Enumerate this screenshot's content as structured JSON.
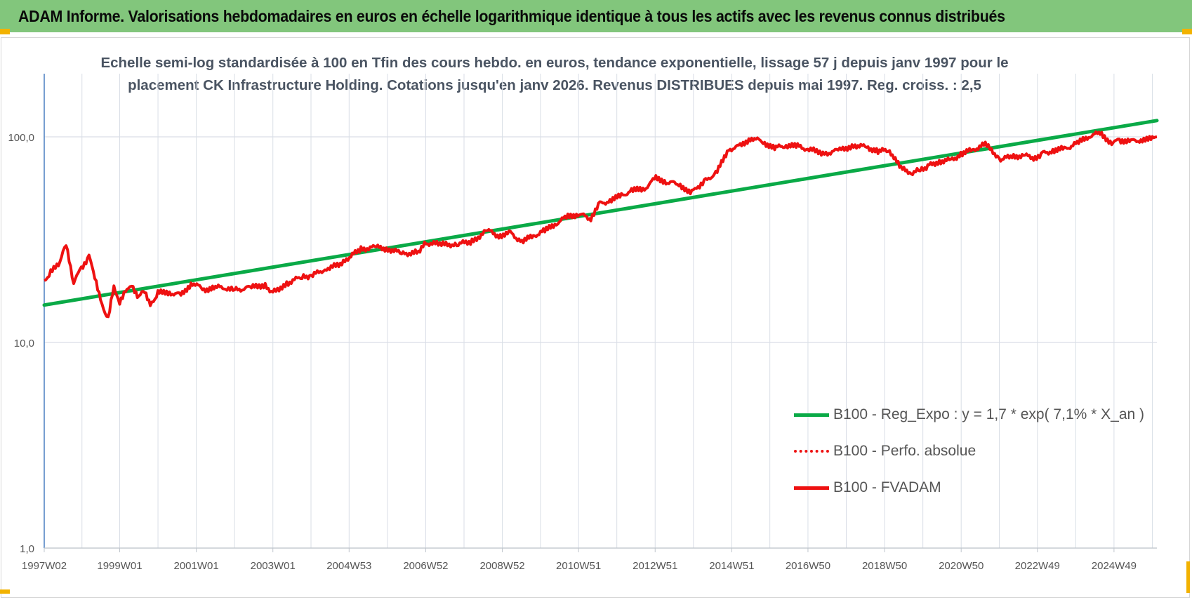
{
  "header": {
    "title": "ADAM Informe. Valorisations hebdomadaires en euros en échelle logarithmique identique à tous les actifs avec les revenus connus distribués"
  },
  "colors": {
    "banner": "#82c67c",
    "regression": "#0aaa47",
    "fvadam": "#ee1111",
    "axis": "#4a7fc0",
    "grid": "#d9dee6",
    "corner": "#f2b200"
  },
  "chart_data": {
    "type": "line",
    "title_lines": [
      "Echelle semi-log standardisée à 100 en Tfin des cours hebdo. en euros, tendance exponentielle, lissage 57 j depuis janv 1997 pour le",
      "placement CK Infrastructure Holding. Cotations jusqu'en janv 2026. Revenus DISTRIBUES depuis mai 1997. Reg. croiss. : 2,5"
    ],
    "y_scale": "log",
    "ylim": [
      1,
      200
    ],
    "y_ticks": [
      "1,0",
      "10,0",
      "100,0"
    ],
    "y_tick_values": [
      1,
      10,
      100
    ],
    "x_range": [
      1997.03,
      2026.08
    ],
    "x_ticks": [
      "1997W02",
      "1999W01",
      "2001W01",
      "2003W01",
      "2004W53",
      "2006W52",
      "2008W52",
      "2010W51",
      "2012W51",
      "2014W51",
      "2016W50",
      "2018W50",
      "2020W50",
      "2022W49",
      "2024W49"
    ],
    "x_tick_years": [
      1997.03,
      1999.0,
      2001.0,
      2003.0,
      2004.99,
      2006.99,
      2008.99,
      2010.98,
      2012.98,
      2014.98,
      2016.97,
      2018.97,
      2020.97,
      2022.96,
      2024.96
    ],
    "legend_position": "bottom-right",
    "grid": true,
    "series": [
      {
        "name": "B100 - Reg_Expo : y = 1,7 * exp( 7,1% *  X_an )",
        "style": "solid-green",
        "x": [
          1997.03,
          2026.08
        ],
        "values": [
          15.2,
          120
        ]
      },
      {
        "name": "B100 - Perfo. absolue",
        "style": "dotted-red",
        "x": [],
        "values": []
      },
      {
        "name": "B100 - FVADAM",
        "style": "solid-red",
        "x": [
          1997.03,
          1997.2,
          1997.4,
          1997.6,
          1997.8,
          1998.0,
          1998.2,
          1998.35,
          1998.5,
          1998.7,
          1998.85,
          1999.0,
          1999.15,
          1999.35,
          1999.5,
          1999.65,
          1999.8,
          2000.0,
          2000.3,
          2000.6,
          2000.9,
          2001.2,
          2001.5,
          2001.8,
          2002.0,
          2002.4,
          2002.8,
          2003.0,
          2003.4,
          2003.8,
          2004.0,
          2004.4,
          2004.8,
          2005.0,
          2005.3,
          2005.7,
          2006.0,
          2006.4,
          2006.8,
          2007.0,
          2007.4,
          2007.8,
          2008.2,
          2008.6,
          2008.9,
          2009.2,
          2009.5,
          2009.8,
          2010.1,
          2010.4,
          2010.7,
          2011.0,
          2011.3,
          2011.5,
          2011.8,
          2012.1,
          2012.4,
          2012.7,
          2013.0,
          2013.3,
          2013.6,
          2013.9,
          2014.1,
          2014.3,
          2014.6,
          2014.9,
          2015.2,
          2015.5,
          2015.8,
          2016.1,
          2016.4,
          2016.7,
          2017.0,
          2017.4,
          2017.8,
          2018.2,
          2018.5,
          2018.8,
          2019.1,
          2019.4,
          2019.7,
          2019.9,
          2020.1,
          2020.4,
          2020.7,
          2021.0,
          2021.3,
          2021.6,
          2022.0,
          2022.3,
          2022.6,
          2022.9,
          2023.1,
          2023.4,
          2023.7,
          2024.0,
          2024.3,
          2024.6,
          2024.9,
          2025.1,
          2025.4,
          2025.7,
          2026.0,
          2026.08
        ],
        "values": [
          20,
          22,
          24,
          30,
          19.5,
          23,
          26,
          21,
          16,
          13,
          19,
          15.5,
          18,
          18.5,
          16.5,
          18,
          15,
          17.5,
          17.5,
          17,
          19.5,
          18,
          18.5,
          18.5,
          18,
          18.5,
          19,
          17.5,
          19.5,
          21,
          21,
          23,
          24,
          26,
          28.5,
          29,
          28.5,
          27,
          27.5,
          30.5,
          30,
          30,
          31,
          35,
          33,
          34,
          31,
          33,
          35,
          38,
          41,
          42,
          40,
          47,
          49,
          52,
          55,
          56,
          63,
          60,
          59,
          53,
          57,
          61,
          68,
          87,
          90,
          99,
          94,
          88,
          91,
          90,
          87,
          83,
          86,
          91,
          89,
          85,
          86,
          70,
          67,
          69,
          72,
          76,
          77,
          83,
          87,
          92,
          78,
          80,
          81,
          79,
          83,
          86,
          88,
          93,
          101,
          104,
          93,
          96,
          95,
          97,
          98,
          100
        ]
      }
    ]
  }
}
